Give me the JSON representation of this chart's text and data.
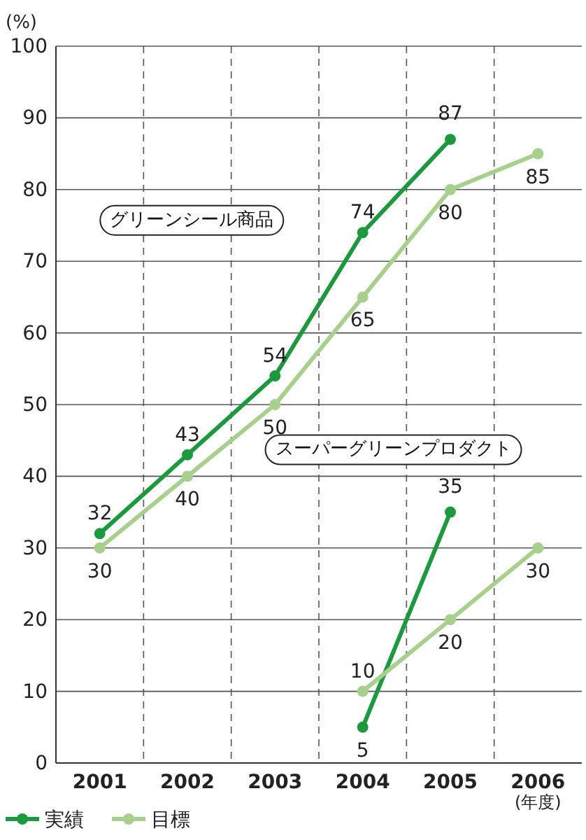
{
  "chart_data": {
    "type": "line",
    "ylabel": "(%)",
    "xlabel": "(年度)",
    "categories": [
      "2001",
      "2002",
      "2003",
      "2004",
      "2005",
      "2006"
    ],
    "ylim": [
      0,
      100
    ],
    "yticks": [
      0,
      10,
      20,
      30,
      40,
      50,
      60,
      70,
      80,
      90,
      100
    ],
    "series": [
      {
        "name": "実績",
        "color": "#1a9a3c",
        "values": [
          32,
          43,
          54,
          74,
          87,
          null
        ]
      },
      {
        "name": "目標",
        "color": "#a8d08d",
        "values": [
          30,
          40,
          50,
          65,
          80,
          85
        ]
      },
      {
        "color": "#1a9a3c",
        "values": [
          null,
          null,
          null,
          5,
          35,
          null
        ]
      },
      {
        "color": "#a8d08d",
        "values": [
          null,
          null,
          null,
          10,
          20,
          30
        ]
      }
    ],
    "annotations": [
      "グリーンシール商品",
      "スーパーグリーンプロダクト"
    ],
    "grid": true,
    "data_labels": true,
    "marker": "circle",
    "line_style": "solid",
    "legend": "bottom left"
  }
}
